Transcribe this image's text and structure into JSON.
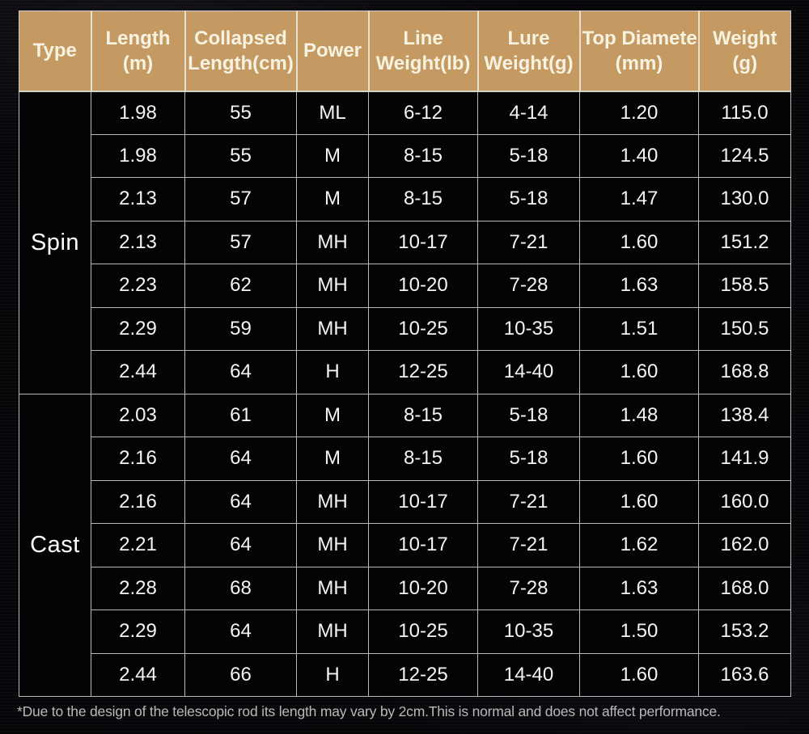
{
  "chart_data": {
    "type": "table",
    "title": "Telescopic fishing rod specifications",
    "columns": [
      {
        "id": "type",
        "lines": [
          "Type"
        ]
      },
      {
        "id": "length-m",
        "lines": [
          "Length",
          "(m)"
        ]
      },
      {
        "id": "collapsed-length-cm",
        "lines": [
          "Collapsed",
          "Length(cm)"
        ]
      },
      {
        "id": "power",
        "lines": [
          "Power"
        ]
      },
      {
        "id": "line-weight-lb",
        "lines": [
          "Line",
          "Weight(lb)"
        ]
      },
      {
        "id": "lure-weight-g",
        "lines": [
          "Lure",
          "Weight(g)"
        ]
      },
      {
        "id": "top-diameter-mm",
        "lines": [
          "Top Diamete",
          "(mm)"
        ]
      },
      {
        "id": "weight-g",
        "lines": [
          "Weight",
          "(g)"
        ]
      }
    ],
    "sections": [
      {
        "type": "Spin",
        "rows": [
          [
            "1.98",
            "55",
            "ML",
            "6-12",
            "4-14",
            "1.20",
            "115.0"
          ],
          [
            "1.98",
            "55",
            "M",
            "8-15",
            "5-18",
            "1.40",
            "124.5"
          ],
          [
            "2.13",
            "57",
            "M",
            "8-15",
            "5-18",
            "1.47",
            "130.0"
          ],
          [
            "2.13",
            "57",
            "MH",
            "10-17",
            "7-21",
            "1.60",
            "151.2"
          ],
          [
            "2.23",
            "62",
            "MH",
            "10-20",
            "7-28",
            "1.63",
            "158.5"
          ],
          [
            "2.29",
            "59",
            "MH",
            "10-25",
            "10-35",
            "1.51",
            "150.5"
          ],
          [
            "2.44",
            "64",
            "H",
            "12-25",
            "14-40",
            "1.60",
            "168.8"
          ]
        ]
      },
      {
        "type": "Cast",
        "rows": [
          [
            "2.03",
            "61",
            "M",
            "8-15",
            "5-18",
            "1.48",
            "138.4"
          ],
          [
            "2.16",
            "64",
            "M",
            "8-15",
            "5-18",
            "1.60",
            "141.9"
          ],
          [
            "2.16",
            "64",
            "MH",
            "10-17",
            "7-21",
            "1.60",
            "160.0"
          ],
          [
            "2.21",
            "64",
            "MH",
            "10-17",
            "7-21",
            "1.62",
            "162.0"
          ],
          [
            "2.28",
            "68",
            "MH",
            "10-20",
            "7-28",
            "1.63",
            "168.0"
          ],
          [
            "2.29",
            "64",
            "MH",
            "10-25",
            "10-35",
            "1.50",
            "153.2"
          ],
          [
            "2.44",
            "66",
            "H",
            "12-25",
            "14-40",
            "1.60",
            "163.6"
          ]
        ]
      }
    ],
    "layout": {
      "legend": "none",
      "grid": "on"
    }
  },
  "footnote": "*Due to the design of the telescopic rod its length may vary by 2cm.This is normal and does not affect performance.",
  "colors": {
    "header_bg": "#c49a62",
    "header_text": "#f8f2e1",
    "cell_bg": "#040406",
    "cell_text": "#f4f4f4",
    "grid_line": "#b9b9b9",
    "page_bg": "#07070a",
    "footnote_text": "#b9b9b9"
  }
}
